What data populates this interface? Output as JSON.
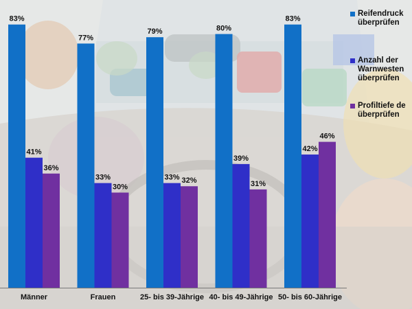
{
  "chart_data": {
    "type": "bar",
    "categories": [
      "Männer",
      "Frauen",
      "25- bis 39-Jährige",
      "40- bis 49-Jährige",
      "50- bis 60-Jährige"
    ],
    "series": [
      {
        "name": "Reifendruck überprüfen",
        "legend_label": "Reifendruck\nüberprüfen",
        "color": "#1170c7",
        "values": [
          83,
          77,
          79,
          80,
          83
        ],
        "labels": [
          "83%",
          "77%",
          "79%",
          "80%",
          "83%"
        ]
      },
      {
        "name": "Anzahl der Warnwesten überprüfen",
        "legend_label": "Anzahl der\nWarnwesten\nüberprüfen",
        "color": "#2f2fc8",
        "values": [
          41,
          33,
          33,
          39,
          42
        ],
        "labels": [
          "41%",
          "33%",
          "33%",
          "39%",
          "42%"
        ]
      },
      {
        "name": "Profiltiefe der Reifen überprüfen",
        "legend_label": "Profiltiefe de\nüberprüfen",
        "color": "#7030a0",
        "values": [
          36,
          30,
          32,
          31,
          46
        ],
        "labels": [
          "36%",
          "30%",
          "32%",
          "31%",
          "46%"
        ]
      }
    ],
    "ylim": [
      0,
      100
    ],
    "legend_position": "right",
    "title": "",
    "xlabel": "",
    "ylabel": ""
  }
}
